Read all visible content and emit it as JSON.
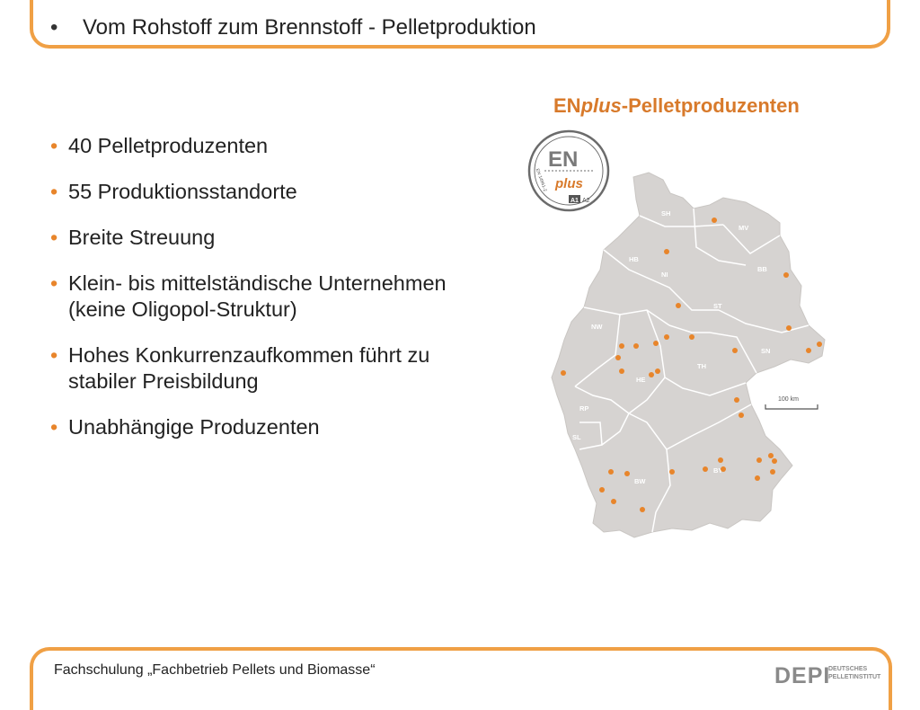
{
  "slide": {
    "title_bullet": "•",
    "title": "Vom Rohstoff zum Brennstoff - Pelletproduktion"
  },
  "bullets": [
    "40 Pelletproduzenten",
    "55 Produktionsstandorte",
    "Breite Streuung",
    "Klein- bis mittelständische Unternehmen (keine Oligopol-Struktur)",
    "Hohes Konkurrenzaufkommen führt zu stabiler Preisbildung",
    "Unabhängige Produzenten"
  ],
  "bullet_symbol": "•",
  "map": {
    "title_prefix": "EN",
    "title_plus": "plus",
    "title_suffix": "-Pelletproduzenten",
    "logo_main": "EN",
    "logo_plus": "plus",
    "logo_norm": "EN 14961-2",
    "logo_a1": "A1",
    "logo_a2": "A2",
    "scale_label": "100 km",
    "state_labels": [
      "SH",
      "MV",
      "HB",
      "NI",
      "BB",
      "ST",
      "NW",
      "SN",
      "TH",
      "HE",
      "RP",
      "SL",
      "BW",
      "BY"
    ],
    "marker_color": "#e8852b"
  },
  "footer": {
    "text": "Fachschulung „Fachbetrieb Pellets und Biomasse“",
    "logo_main": "DEPI",
    "logo_sub_line1": "DEUTSCHES",
    "logo_sub_line2": "PELLETINSTITUT"
  },
  "colors": {
    "accent": "#f0a045",
    "title_orange": "#d87a2b",
    "map_fill": "#d6d3d1",
    "map_border": "#ffffff"
  }
}
